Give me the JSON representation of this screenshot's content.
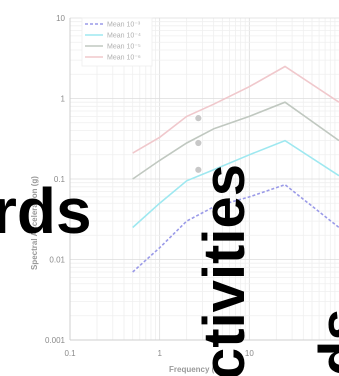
{
  "chart_data": {
    "type": "line",
    "xscale": "log",
    "yscale": "log",
    "xlim": [
      0.1,
      100
    ],
    "ylim": [
      0.001,
      10
    ],
    "xlabel": "Frequency (",
    "ylabel": "Spectral Acceleration (g)",
    "x_ticks": [
      "0.1",
      "1",
      "10"
    ],
    "y_ticks": [
      "0.001",
      "0.01",
      "0.1",
      "1",
      "10"
    ],
    "grid": true,
    "legend_position": "top-left",
    "series": [
      {
        "name": "Mean 10⁻³",
        "color": "#9a9ae8",
        "dash": "3,2",
        "x": [
          0.5,
          1,
          2,
          4,
          10,
          25,
          100
        ],
        "y": [
          0.007,
          0.014,
          0.03,
          0.045,
          0.06,
          0.085,
          0.025
        ]
      },
      {
        "name": "Mean 10⁻⁴",
        "color": "#9ee8f0",
        "dash": "",
        "x": [
          0.5,
          1,
          2,
          4,
          10,
          25,
          100
        ],
        "y": [
          0.025,
          0.05,
          0.095,
          0.13,
          0.2,
          0.3,
          0.11
        ]
      },
      {
        "name": "Mean 10⁻⁵",
        "color": "#c0c8c0",
        "dash": "",
        "x": [
          0.5,
          1,
          2,
          4,
          10,
          25,
          100
        ],
        "y": [
          0.1,
          0.17,
          0.28,
          0.42,
          0.6,
          0.9,
          0.3
        ]
      },
      {
        "name": "Mean 10⁻⁶",
        "color": "#f0c8cc",
        "dash": "",
        "x": [
          0.5,
          1,
          2,
          4,
          10,
          25,
          100
        ],
        "y": [
          0.21,
          0.33,
          0.6,
          0.85,
          1.4,
          2.5,
          0.9
        ]
      }
    ],
    "markers": [
      {
        "x": 2.7,
        "y": 0.57
      },
      {
        "x": 2.7,
        "y": 0.28
      },
      {
        "x": 2.7,
        "y": 0.13
      }
    ]
  },
  "overlay_text": [
    {
      "text": "rds"
    },
    {
      "text": "ctivities"
    },
    {
      "text": "ds"
    }
  ]
}
